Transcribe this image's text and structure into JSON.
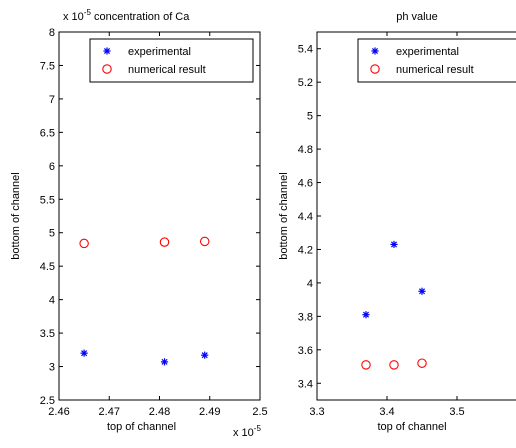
{
  "chart_data": [
    {
      "type": "scatter",
      "title": "concentration of Ca",
      "title_prefix": "x 10",
      "title_prefix_exp": "-5",
      "xlabel": "top of channel",
      "ylabel": "bottom of channel",
      "x_multiplier": "x 10",
      "x_multiplier_exp": "-5",
      "xlim": [
        2.46,
        2.5
      ],
      "ylim": [
        2.5,
        8
      ],
      "xticks": [
        "2.46",
        "2.47",
        "2.48",
        "2.49",
        "2.5"
      ],
      "yticks": [
        "2.5",
        "3",
        "3.5",
        "4",
        "4.5",
        "5",
        "5.5",
        "6",
        "6.5",
        "7",
        "7.5",
        "8"
      ],
      "legend_position": "top-right",
      "series": [
        {
          "name": "experimental",
          "marker": "star",
          "color": "#0000ff",
          "x": [
            2.465,
            2.481,
            2.489
          ],
          "y": [
            3.2,
            3.07,
            3.17
          ]
        },
        {
          "name": "numerical result",
          "marker": "circle",
          "color": "#ff0000",
          "x": [
            2.465,
            2.481,
            2.489
          ],
          "y": [
            4.84,
            4.86,
            4.87
          ]
        }
      ]
    },
    {
      "type": "scatter",
      "title": "ph value",
      "xlabel": "top of channel",
      "ylabel": "bottom of channel",
      "xlim": [
        3.3,
        3.6
      ],
      "ylim": [
        3.3,
        5.5
      ],
      "xticks": [
        "3.3",
        "3.4",
        "3.5"
      ],
      "yticks": [
        "3.4",
        "3.6",
        "3.8",
        "4",
        "4.2",
        "4.4",
        "4.6",
        "4.8",
        "5",
        "5.2",
        "5.4"
      ],
      "legend_position": "top-right",
      "series": [
        {
          "name": "experimental",
          "marker": "star",
          "color": "#0000ff",
          "x": [
            3.37,
            3.41,
            3.45
          ],
          "y": [
            3.81,
            4.23,
            3.95
          ]
        },
        {
          "name": "numerical result",
          "marker": "circle",
          "color": "#ff0000",
          "x": [
            3.37,
            3.41,
            3.45
          ],
          "y": [
            3.51,
            3.51,
            3.52
          ]
        }
      ]
    }
  ]
}
